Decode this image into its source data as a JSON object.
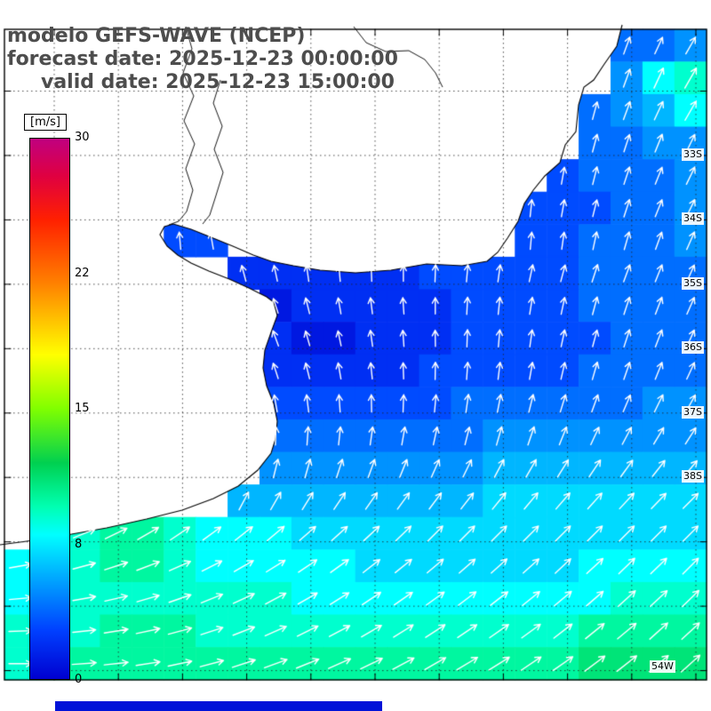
{
  "title": {
    "line1": "modelo GEFS-WAVE (NCEP)",
    "line2": "forecast date: 2025-12-23 00:00:00",
    "line3": "valid date: 2025-12-23 15:00:00"
  },
  "legend": {
    "units": "[m/s]",
    "ticks": [
      "30",
      "22",
      "15",
      "8",
      "0"
    ],
    "min": 0,
    "max": 30,
    "colors": [
      "#0000d0",
      "#0040ff",
      "#00a0ff",
      "#00ffff",
      "#00ffb0",
      "#00d050",
      "#80ff00",
      "#ffff00",
      "#ff8000",
      "#ff2000",
      "#e00040",
      "#c00080"
    ]
  },
  "map": {
    "lat_labels": [
      "33S",
      "34S",
      "35S",
      "36S",
      "37S",
      "38S"
    ],
    "lon_labels": [
      "54W"
    ]
  },
  "chart_data": {
    "type": "heatmap",
    "variable": "wind speed (cell colors) with direction arrows",
    "units": "m/s",
    "scale": {
      "min": 0,
      "max": 30
    },
    "grid": {
      "cols": 22,
      "rows": 20
    },
    "speeds": [
      [
        null,
        null,
        null,
        null,
        null,
        null,
        null,
        null,
        null,
        null,
        null,
        null,
        null,
        null,
        null,
        null,
        null,
        null,
        null,
        4,
        4,
        5
      ],
      [
        null,
        null,
        null,
        null,
        null,
        null,
        null,
        null,
        null,
        null,
        null,
        null,
        null,
        null,
        null,
        null,
        null,
        null,
        null,
        5,
        8,
        9
      ],
      [
        null,
        null,
        null,
        null,
        null,
        null,
        null,
        null,
        null,
        null,
        null,
        null,
        null,
        null,
        null,
        null,
        null,
        null,
        4,
        5,
        6,
        8
      ],
      [
        null,
        null,
        null,
        null,
        null,
        null,
        null,
        null,
        null,
        null,
        null,
        null,
        null,
        null,
        null,
        null,
        null,
        null,
        4,
        4,
        5,
        5
      ],
      [
        null,
        null,
        null,
        null,
        null,
        null,
        null,
        null,
        null,
        null,
        null,
        null,
        null,
        null,
        null,
        null,
        null,
        3,
        4,
        4,
        4,
        5
      ],
      [
        null,
        null,
        null,
        null,
        null,
        null,
        null,
        null,
        null,
        null,
        null,
        null,
        null,
        null,
        null,
        null,
        3,
        3,
        3,
        4,
        4,
        5
      ],
      [
        null,
        null,
        null,
        null,
        null,
        3,
        3,
        null,
        null,
        null,
        null,
        null,
        null,
        null,
        null,
        null,
        3,
        3,
        4,
        4,
        4,
        5
      ],
      [
        null,
        null,
        null,
        null,
        null,
        null,
        null,
        2,
        2,
        2,
        2,
        2,
        2,
        3,
        3,
        3,
        3,
        3,
        4,
        4,
        4,
        4
      ],
      [
        null,
        null,
        null,
        null,
        null,
        null,
        null,
        null,
        1,
        2,
        2,
        2,
        2,
        2,
        3,
        3,
        3,
        3,
        4,
        4,
        4,
        4
      ],
      [
        null,
        null,
        null,
        null,
        null,
        null,
        null,
        null,
        2,
        1,
        1,
        2,
        2,
        2,
        3,
        3,
        3,
        3,
        3,
        4,
        4,
        4
      ],
      [
        null,
        null,
        null,
        null,
        null,
        null,
        null,
        null,
        2,
        2,
        2,
        2,
        2,
        3,
        3,
        3,
        3,
        3,
        4,
        4,
        4,
        4
      ],
      [
        null,
        null,
        null,
        null,
        null,
        null,
        null,
        null,
        3,
        3,
        3,
        3,
        3,
        3,
        4,
        4,
        4,
        4,
        4,
        4,
        5,
        5
      ],
      [
        null,
        null,
        null,
        null,
        null,
        null,
        null,
        null,
        4,
        4,
        4,
        4,
        4,
        4,
        4,
        5,
        5,
        5,
        5,
        5,
        5,
        5
      ],
      [
        null,
        null,
        null,
        null,
        null,
        null,
        null,
        null,
        5,
        5,
        5,
        5,
        5,
        5,
        5,
        6,
        6,
        6,
        6,
        6,
        6,
        6
      ],
      [
        null,
        null,
        null,
        null,
        null,
        null,
        null,
        6,
        6,
        6,
        6,
        6,
        6,
        6,
        6,
        7,
        7,
        7,
        7,
        7,
        7,
        7
      ],
      [
        null,
        null,
        9,
        10,
        10,
        9,
        8,
        8,
        8,
        7,
        7,
        7,
        7,
        7,
        7,
        7,
        7,
        7,
        7,
        7,
        7,
        7
      ],
      [
        8,
        8,
        9,
        10,
        10,
        9,
        8,
        8,
        8,
        8,
        8,
        7,
        7,
        7,
        7,
        7,
        7,
        7,
        8,
        8,
        8,
        8
      ],
      [
        8,
        8,
        9,
        9,
        9,
        9,
        9,
        9,
        9,
        8,
        8,
        8,
        8,
        8,
        8,
        8,
        8,
        8,
        8,
        9,
        9,
        9
      ],
      [
        9,
        9,
        9,
        10,
        10,
        10,
        9,
        9,
        9,
        9,
        9,
        9,
        9,
        9,
        9,
        9,
        9,
        9,
        10,
        10,
        10,
        10
      ],
      [
        9,
        10,
        10,
        10,
        10,
        10,
        10,
        10,
        10,
        10,
        10,
        10,
        10,
        10,
        10,
        10,
        10,
        10,
        11,
        11,
        11,
        11
      ]
    ],
    "directions_deg": [
      [
        null,
        null,
        null,
        null,
        null,
        null,
        null,
        null,
        null,
        null,
        null,
        null,
        null,
        null,
        null,
        null,
        null,
        null,
        null,
        70,
        65,
        60
      ],
      [
        null,
        null,
        null,
        null,
        null,
        null,
        null,
        null,
        null,
        null,
        null,
        null,
        null,
        null,
        null,
        null,
        null,
        null,
        null,
        70,
        65,
        60
      ],
      [
        null,
        null,
        null,
        null,
        null,
        null,
        null,
        null,
        null,
        null,
        null,
        null,
        null,
        null,
        null,
        null,
        null,
        null,
        75,
        70,
        65,
        60
      ],
      [
        null,
        null,
        null,
        null,
        null,
        null,
        null,
        null,
        null,
        null,
        null,
        null,
        null,
        null,
        null,
        null,
        null,
        null,
        75,
        72,
        68,
        64
      ],
      [
        null,
        null,
        null,
        null,
        null,
        null,
        null,
        null,
        null,
        null,
        null,
        null,
        null,
        null,
        null,
        null,
        null,
        80,
        76,
        72,
        68,
        64
      ],
      [
        null,
        null,
        null,
        null,
        null,
        null,
        null,
        null,
        null,
        null,
        null,
        null,
        null,
        null,
        null,
        null,
        84,
        80,
        76,
        72,
        68,
        64
      ],
      [
        null,
        null,
        null,
        null,
        null,
        95,
        100,
        null,
        null,
        null,
        null,
        null,
        null,
        null,
        null,
        null,
        85,
        82,
        78,
        74,
        70,
        66
      ],
      [
        null,
        null,
        null,
        null,
        null,
        null,
        null,
        105,
        102,
        98,
        95,
        92,
        90,
        88,
        85,
        82,
        78,
        75,
        72,
        70,
        68,
        66
      ],
      [
        null,
        null,
        null,
        null,
        null,
        null,
        null,
        null,
        108,
        104,
        100,
        97,
        94,
        90,
        87,
        84,
        81,
        78,
        75,
        72,
        69,
        66
      ],
      [
        null,
        null,
        null,
        null,
        null,
        null,
        null,
        null,
        110,
        106,
        102,
        98,
        94,
        91,
        88,
        85,
        82,
        78,
        75,
        72,
        69,
        66
      ],
      [
        null,
        null,
        null,
        null,
        null,
        null,
        null,
        null,
        108,
        104,
        100,
        96,
        92,
        89,
        86,
        83,
        80,
        77,
        74,
        71,
        68,
        65
      ],
      [
        null,
        null,
        null,
        null,
        null,
        null,
        null,
        null,
        100,
        97,
        94,
        91,
        88,
        85,
        82,
        79,
        76,
        73,
        70,
        67,
        64,
        61
      ],
      [
        null,
        null,
        null,
        null,
        null,
        null,
        null,
        null,
        88,
        86,
        84,
        82,
        80,
        78,
        76,
        74,
        71,
        68,
        65,
        62,
        59,
        57
      ],
      [
        null,
        null,
        null,
        null,
        null,
        null,
        null,
        null,
        76,
        74,
        72,
        70,
        68,
        66,
        64,
        62,
        60,
        58,
        56,
        54,
        52,
        50
      ],
      [
        null,
        null,
        null,
        null,
        null,
        null,
        null,
        62,
        60,
        58,
        56,
        55,
        54,
        53,
        52,
        51,
        50,
        49,
        48,
        47,
        46,
        45
      ],
      [
        null,
        null,
        22,
        26,
        30,
        34,
        36,
        38,
        40,
        41,
        42,
        43,
        44,
        45,
        45,
        45,
        45,
        45,
        45,
        45,
        45,
        45
      ],
      [
        10,
        12,
        15,
        18,
        21,
        24,
        27,
        30,
        32,
        34,
        36,
        38,
        39,
        40,
        41,
        42,
        42,
        43,
        43,
        44,
        44,
        45
      ],
      [
        5,
        7,
        10,
        13,
        16,
        19,
        22,
        25,
        28,
        30,
        32,
        34,
        35,
        36,
        37,
        38,
        39,
        40,
        41,
        42,
        43,
        44
      ],
      [
        2,
        4,
        6,
        9,
        12,
        15,
        18,
        21,
        24,
        26,
        28,
        30,
        32,
        33,
        34,
        35,
        36,
        38,
        39,
        40,
        42,
        43
      ],
      [
        0,
        2,
        4,
        6,
        9,
        12,
        15,
        18,
        20,
        22,
        24,
        26,
        28,
        30,
        31,
        32,
        34,
        35,
        37,
        38,
        40,
        42
      ]
    ]
  }
}
